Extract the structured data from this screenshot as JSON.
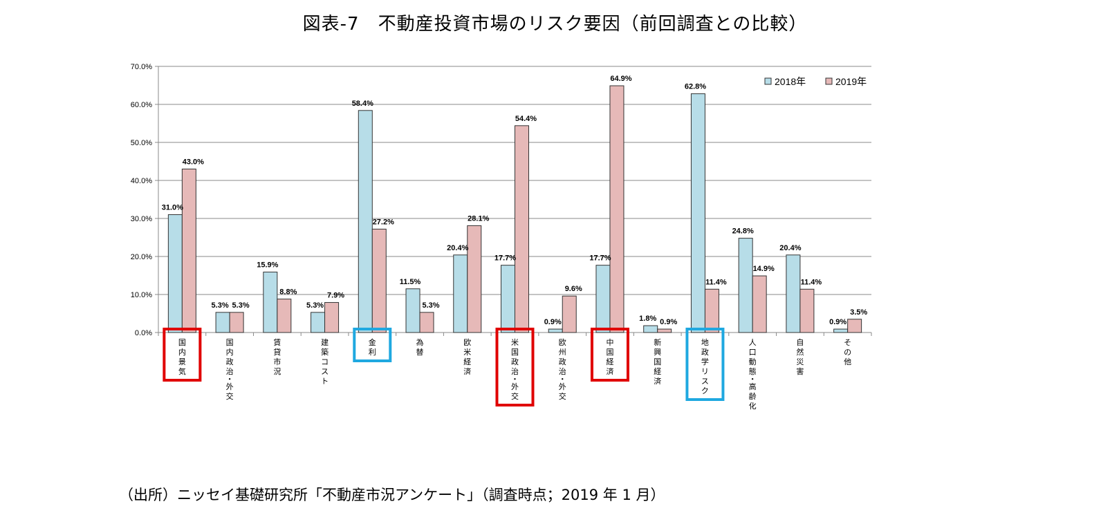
{
  "title": "図表-7　不動産投資市場のリスク要因（前回調査との比較）",
  "source": "（出所）ニッセイ基礎研究所「不動産市況アンケート」（調査時点；2019 年 1 月）",
  "chart_data": {
    "type": "bar",
    "categories": [
      "国内景気",
      "国内政治・外交",
      "賃貸市況",
      "建築コスト",
      "金利",
      "為替",
      "欧米経済",
      "米国政治・外交",
      "欧州政治・外交",
      "中国経済",
      "新興国経済",
      "地政学リスク",
      "人口動態・高齢化",
      "自然災害",
      "その他"
    ],
    "series": [
      {
        "name": "2018年",
        "color": "#b7dde8",
        "values": [
          31.0,
          5.3,
          15.9,
          5.3,
          58.4,
          11.5,
          20.4,
          17.7,
          0.9,
          17.7,
          1.8,
          62.8,
          24.8,
          20.4,
          0.9
        ],
        "labels": [
          "31.0%",
          "5.3%",
          "15.9%",
          "5.3%",
          "58.4%",
          "11.5%",
          "20.4%",
          "17.7%",
          "0.9%",
          "17.7%",
          "1.8%",
          "62.8%",
          "24.8%",
          "20.4%",
          "0.9%"
        ]
      },
      {
        "name": "2019年",
        "color": "#e6b9b8",
        "values": [
          43.0,
          5.3,
          8.8,
          7.9,
          27.2,
          5.3,
          28.1,
          54.4,
          9.6,
          64.9,
          0.9,
          11.4,
          14.9,
          11.4,
          3.5
        ],
        "labels": [
          "43.0%",
          "5.3%",
          "8.8%",
          "7.9%",
          "27.2%",
          "5.3%",
          "28.1%",
          "54.4%",
          "9.6%",
          "64.9%",
          "0.9%",
          "11.4%",
          "14.9%",
          "11.4%",
          "3.5%"
        ]
      }
    ],
    "ylim": [
      0,
      70
    ],
    "yticks": [
      "0.0%",
      "10.0%",
      "20.0%",
      "30.0%",
      "40.0%",
      "50.0%",
      "60.0%",
      "70.0%"
    ],
    "grid": true,
    "legend_position": "top-right",
    "highlights": [
      {
        "category": "国内景気",
        "color": "#e00000"
      },
      {
        "category": "金利",
        "color": "#1fa8e0"
      },
      {
        "category": "米国政治・外交",
        "color": "#e00000"
      },
      {
        "category": "中国経済",
        "color": "#e00000"
      },
      {
        "category": "地政学リスク",
        "color": "#1fa8e0"
      }
    ]
  }
}
